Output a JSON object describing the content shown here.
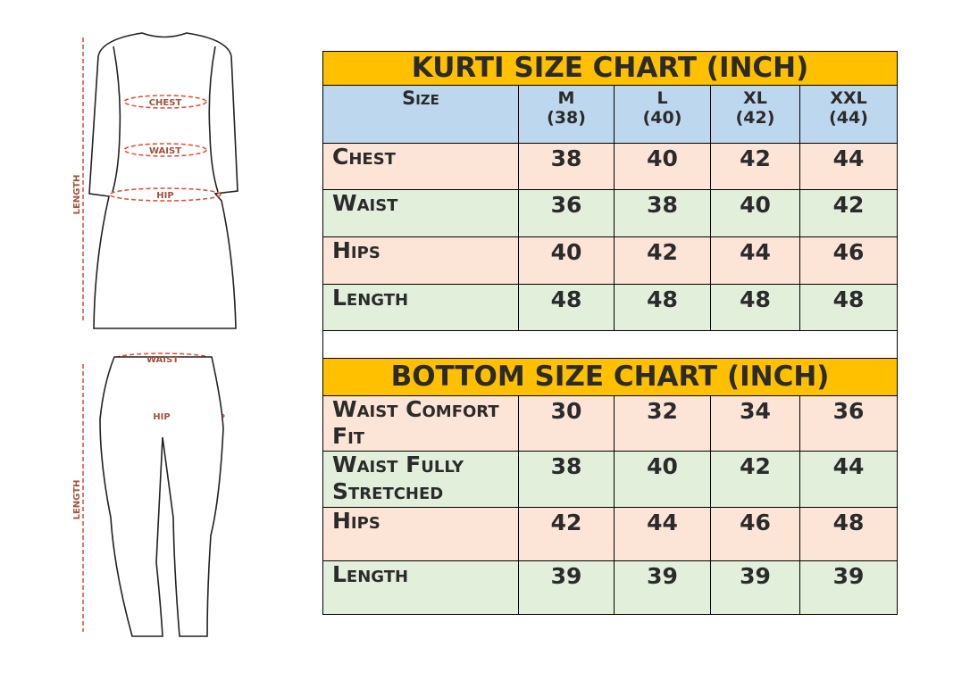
{
  "figures": {
    "kurti_labels": {
      "chest": "CHEST",
      "waist": "WAIST",
      "hip": "HIP",
      "length": "LENGTH"
    },
    "bottom_labels": {
      "waist": "WAIST",
      "hip": "HIP",
      "length": "LENGTH"
    }
  },
  "kurti": {
    "title": "KURTI SIZE CHART (INCH)",
    "header": {
      "label": "Size",
      "sizes": [
        {
          "name": "M",
          "value": "(38)"
        },
        {
          "name": "L",
          "value": "(40)"
        },
        {
          "name": "XL",
          "value": "(42)"
        },
        {
          "name": "XXL",
          "value": "(44)"
        }
      ]
    },
    "rows": [
      {
        "label": "Chest",
        "values": [
          "38",
          "40",
          "42",
          "44"
        ]
      },
      {
        "label": "Waist",
        "values": [
          "36",
          "38",
          "40",
          "42"
        ]
      },
      {
        "label": "Hips",
        "values": [
          "40",
          "42",
          "44",
          "46"
        ]
      },
      {
        "label": "Length",
        "values": [
          "48",
          "48",
          "48",
          "48"
        ]
      }
    ]
  },
  "bottom": {
    "title": "BOTTOM SIZE CHART (INCH)",
    "rows": [
      {
        "label": "Waist Comfort Fit",
        "values": [
          "30",
          "32",
          "34",
          "36"
        ]
      },
      {
        "label": "Waist Fully Stretched",
        "values": [
          "38",
          "40",
          "42",
          "44"
        ]
      },
      {
        "label": "Hips",
        "values": [
          "42",
          "44",
          "46",
          "48"
        ]
      },
      {
        "label": "Length",
        "values": [
          "39",
          "39",
          "39",
          "39"
        ]
      }
    ]
  },
  "colors": {
    "title": "#FFC000",
    "header": "#BDD7EE",
    "peach": "#FCE4D6",
    "green": "#E2EFDA",
    "measure": "#E8472E"
  }
}
